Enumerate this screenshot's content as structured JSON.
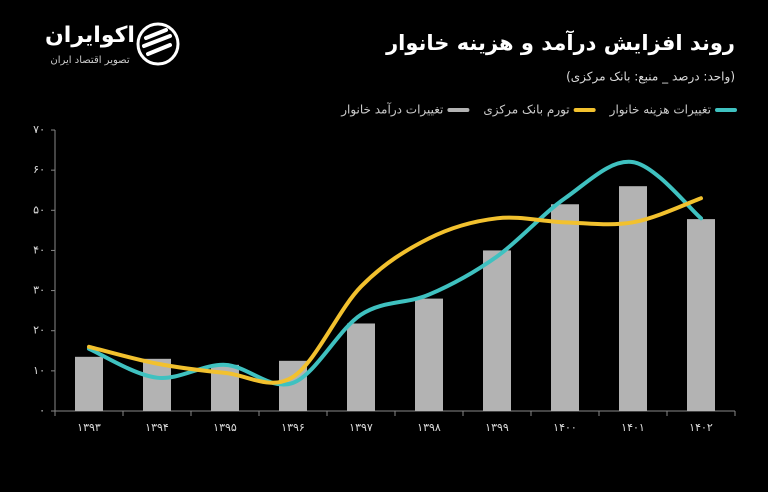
{
  "brand": {
    "name": "اکوایران",
    "tagline": "تصویر اقتصاد ایران"
  },
  "chart_data": {
    "type": "bar-line",
    "title": "روند افزایش درآمد و هزینه خانوار",
    "subtitle": "(واحد: درصد _ منبع: بانک مرکزی)",
    "categories": [
      "۱۳۹۳",
      "۱۳۹۴",
      "۱۳۹۵",
      "۱۳۹۶",
      "۱۳۹۷",
      "۱۳۹۸",
      "۱۳۹۹",
      "۱۴۰۰",
      "۱۴۰۱",
      "۱۴۰۲"
    ],
    "series": [
      {
        "name": "تغییرات هزینه خانوار",
        "color": "#3fc1c0",
        "kind": "line",
        "values": [
          15.5,
          8.3,
          11.5,
          7,
          24,
          29,
          38.5,
          53,
          62,
          48
        ]
      },
      {
        "name": "تورم بانک مرکزی",
        "color": "#f2c12e",
        "kind": "line",
        "values": [
          16,
          11.8,
          9.5,
          8.5,
          31,
          43,
          48,
          47,
          47,
          53
        ]
      },
      {
        "name": "تغییرات درآمد خانوار",
        "color": "#b3b3b3",
        "kind": "bar",
        "values": [
          13.5,
          13,
          11.5,
          12.5,
          21.8,
          28,
          40,
          51.5,
          56,
          47.8
        ]
      }
    ],
    "ylim": [
      0,
      70
    ],
    "yticks": [
      {
        "value": 0,
        "label": "۰"
      },
      {
        "value": 10,
        "label": "۱۰"
      },
      {
        "value": 20,
        "label": "۲۰"
      },
      {
        "value": 30,
        "label": "۳۰"
      },
      {
        "value": 40,
        "label": "۴۰"
      },
      {
        "value": 50,
        "label": "۵۰"
      },
      {
        "value": 60,
        "label": "۶۰"
      },
      {
        "value": 70,
        "label": "۷۰"
      }
    ]
  }
}
